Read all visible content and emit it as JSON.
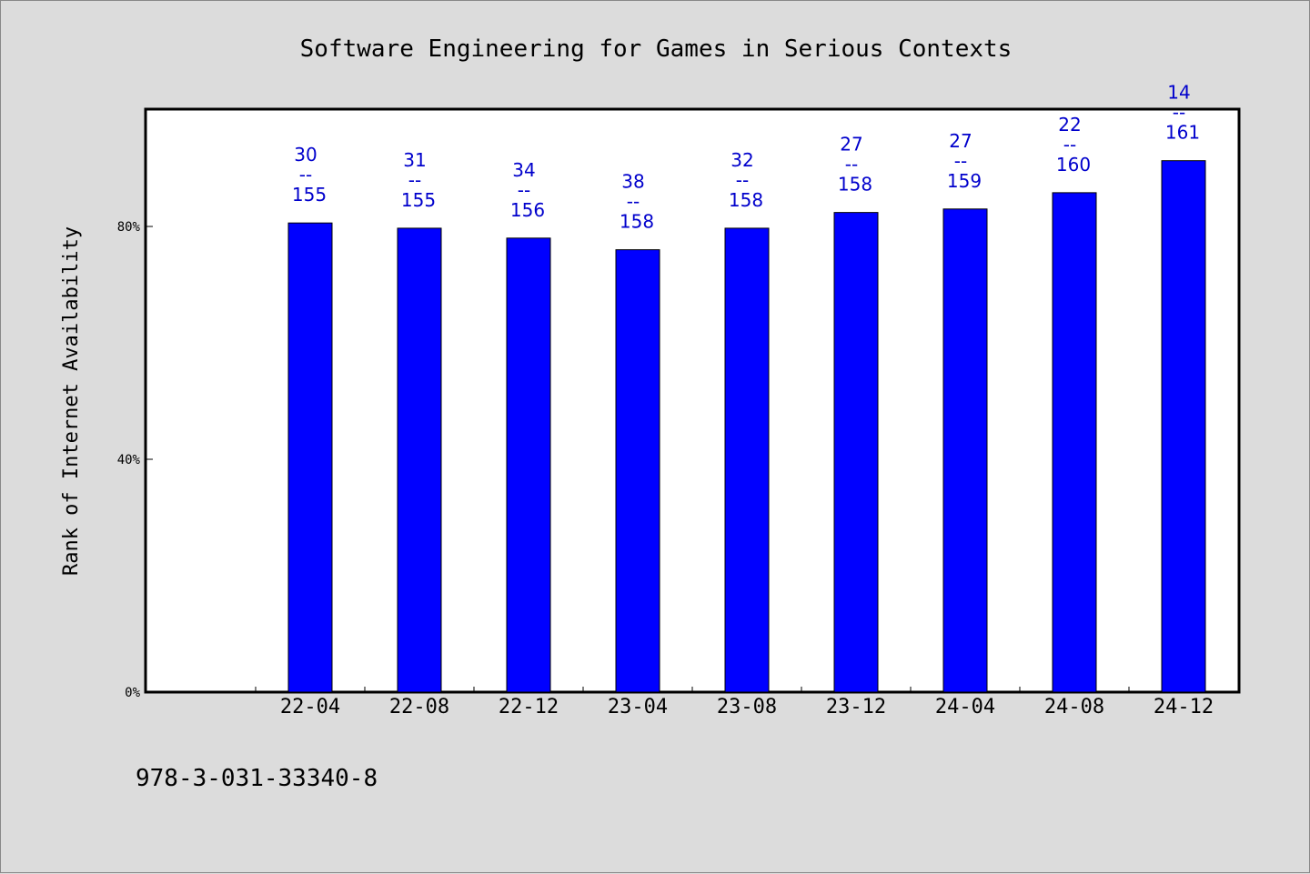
{
  "chart_data": {
    "type": "bar",
    "title": "Software Engineering for Games in Serious Contexts",
    "xlabel": "",
    "ylabel": "Rank of Internet Availability",
    "categories": [
      "22-04",
      "22-08",
      "22-12",
      "23-04",
      "23-08",
      "23-12",
      "24-04",
      "24-08",
      "24-12"
    ],
    "values": [
      80.6,
      79.7,
      78.0,
      76.0,
      79.7,
      82.4,
      83.0,
      85.8,
      91.3
    ],
    "data_labels": [
      {
        "rank": "30",
        "sep": "--",
        "total": "155"
      },
      {
        "rank": "31",
        "sep": "--",
        "total": "155"
      },
      {
        "rank": "34",
        "sep": "--",
        "total": "156"
      },
      {
        "rank": "38",
        "sep": "--",
        "total": "158"
      },
      {
        "rank": "32",
        "sep": "--",
        "total": "158"
      },
      {
        "rank": "27",
        "sep": "--",
        "total": "158"
      },
      {
        "rank": "27",
        "sep": "--",
        "total": "159"
      },
      {
        "rank": "22",
        "sep": "--",
        "total": "160"
      },
      {
        "rank": "14",
        "sep": "--",
        "total": "161"
      }
    ],
    "yticks": [
      {
        "value": 0,
        "label": "0%"
      },
      {
        "value": 40,
        "label": "40%"
      },
      {
        "value": 80,
        "label": "80%"
      }
    ],
    "ylim": [
      0,
      100
    ],
    "grid": false,
    "bar_color": "#0000ff",
    "label_color": "#0000cc"
  },
  "footer": {
    "isbn": "978-3-031-33340-8"
  }
}
